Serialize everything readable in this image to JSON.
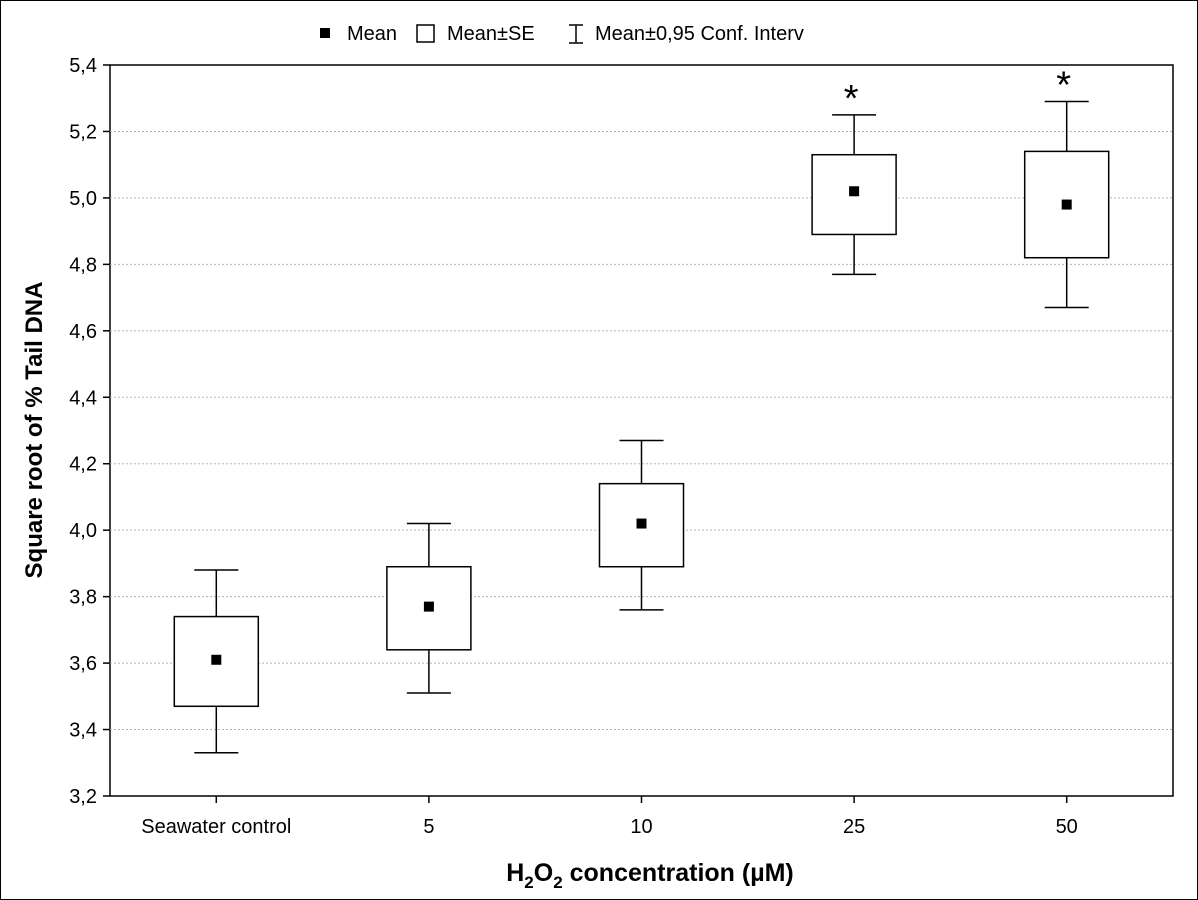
{
  "chart_data": {
    "type": "box",
    "legend": {
      "mean_label": "Mean",
      "se_label": "Mean±SE",
      "ci_label": "Mean±0,95 Conf. Interv"
    },
    "xlabel_main": "H",
    "xlabel_sub1": "2",
    "xlabel_mid": "O",
    "xlabel_sub2": "2",
    "xlabel_rest": " concentration (µM)",
    "ylabel": "Square root of % Tail DNA",
    "ylim": [
      3.2,
      5.4
    ],
    "yticks": [
      "3,2",
      "3,4",
      "3,6",
      "3,8",
      "4,0",
      "4,2",
      "4,4",
      "4,6",
      "4,8",
      "5,0",
      "5,2",
      "5,4"
    ],
    "grid": true,
    "categories": [
      "Seawater control",
      "5",
      "10",
      "25",
      "50"
    ],
    "mean": [
      3.61,
      3.77,
      4.02,
      5.02,
      4.98
    ],
    "se_low": [
      3.47,
      3.64,
      3.89,
      4.89,
      4.82
    ],
    "se_high": [
      3.74,
      3.89,
      4.14,
      5.13,
      5.14
    ],
    "ci_low": [
      3.33,
      3.51,
      3.76,
      4.77,
      4.67
    ],
    "ci_high": [
      3.88,
      4.02,
      4.27,
      5.25,
      5.29
    ],
    "significance": [
      "",
      "",
      "",
      "*",
      "*"
    ]
  }
}
